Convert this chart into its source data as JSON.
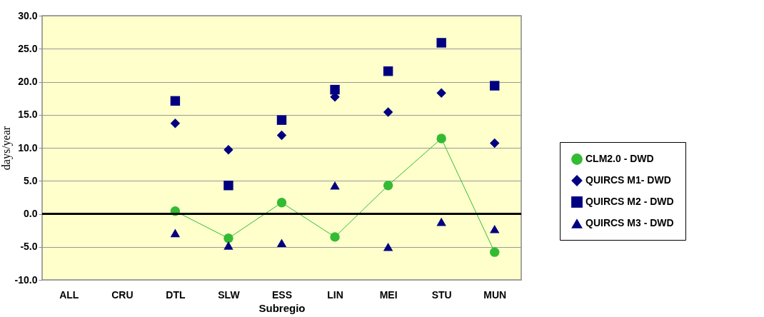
{
  "chart_data": {
    "type": "scatter",
    "xlabel": "Subregio",
    "ylabel": "days/year",
    "categories": [
      "ALL",
      "CRU",
      "DTL",
      "SLW",
      "ESS",
      "LIN",
      "MEI",
      "STU",
      "MUN"
    ],
    "series": [
      {
        "name": "CLM2.0 - DWD",
        "type": "line",
        "marker": "circle",
        "color": "#33bb33",
        "values": [
          null,
          null,
          0.4,
          -3.7,
          1.7,
          -3.5,
          4.3,
          11.4,
          -5.8
        ]
      },
      {
        "name": "QUIRCS M1- DWD",
        "marker": "diamond",
        "color": "#000080",
        "values": [
          null,
          null,
          13.7,
          9.7,
          11.9,
          17.7,
          15.4,
          18.3,
          10.7
        ]
      },
      {
        "name": "QUIRCS M2 - DWD",
        "marker": "square",
        "color": "#000080",
        "values": [
          null,
          null,
          17.1,
          4.3,
          14.2,
          18.8,
          21.6,
          25.9,
          19.4
        ]
      },
      {
        "name": "QUIRCS M3 - DWD",
        "marker": "triangle",
        "color": "#000080",
        "values": [
          null,
          null,
          -2.9,
          -4.8,
          -4.4,
          4.3,
          -5.0,
          -1.2,
          -2.3
        ]
      }
    ],
    "ylim": [
      -10,
      30
    ],
    "yticks": [
      {
        "value": -10,
        "label": "-10.0"
      },
      {
        "value": -5,
        "label": "-5.0"
      },
      {
        "value": 0,
        "label": "0.0"
      },
      {
        "value": 5,
        "label": "5.0"
      },
      {
        "value": 10,
        "label": "10.0"
      },
      {
        "value": 15,
        "label": "15.0"
      },
      {
        "value": 20,
        "label": "20.0"
      },
      {
        "value": 25,
        "label": "25.0"
      },
      {
        "value": 30,
        "label": "30.0"
      }
    ],
    "ref_lines": [
      {
        "axis": "y",
        "value": 0,
        "color": "#000000"
      }
    ],
    "grid": "y",
    "legend": "right"
  }
}
